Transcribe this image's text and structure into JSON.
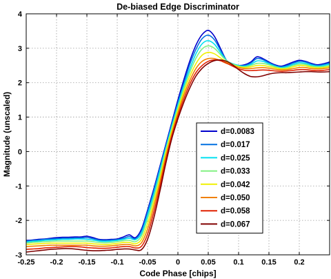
{
  "chart_data": {
    "type": "line",
    "title": "De-biased Edge Discriminator",
    "xlabel": "Code Phase [chips]",
    "ylabel": "Magnitude (unscaled)",
    "xlim": [
      -0.25,
      0.25
    ],
    "ylim": [
      -3,
      4
    ],
    "xticks": [
      -0.25,
      -0.2,
      -0.15,
      -0.1,
      -0.05,
      0,
      0.05,
      0.1,
      0.15,
      0.2
    ],
    "xtick_labels": [
      "-0.25",
      "-0.2",
      "-0.15",
      "-0.1",
      "-0.05",
      "0",
      "0.05",
      "0.1",
      "0.15",
      "0.2"
    ],
    "yticks": [
      -3,
      -2,
      -1,
      0,
      1,
      2,
      3,
      4
    ],
    "ytick_labels": [
      "-3",
      "-2",
      "-1",
      "0",
      "1",
      "2",
      "3",
      "4"
    ],
    "grid": true,
    "legend_position": "center-right",
    "x": [
      -0.25,
      -0.24,
      -0.23,
      -0.22,
      -0.21,
      -0.2,
      -0.19,
      -0.18,
      -0.17,
      -0.16,
      -0.15,
      -0.14,
      -0.13,
      -0.12,
      -0.11,
      -0.1,
      -0.09,
      -0.08,
      -0.07,
      -0.06,
      -0.05,
      -0.04,
      -0.03,
      -0.02,
      -0.01,
      0,
      0.01,
      0.02,
      0.03,
      0.04,
      0.05,
      0.06,
      0.07,
      0.08,
      0.09,
      0.1,
      0.11,
      0.12,
      0.13,
      0.14,
      0.15,
      0.16,
      0.17,
      0.18,
      0.19,
      0.2,
      0.21,
      0.22,
      0.23,
      0.24,
      0.25
    ],
    "series": [
      {
        "name": "d=0.0083",
        "color": "#0000cc",
        "values": [
          -2.58,
          -2.57,
          -2.55,
          -2.54,
          -2.52,
          -2.5,
          -2.49,
          -2.49,
          -2.48,
          -2.48,
          -2.46,
          -2.5,
          -2.55,
          -2.56,
          -2.55,
          -2.54,
          -2.48,
          -2.42,
          -2.5,
          -2.25,
          -1.7,
          -1.1,
          -0.45,
          0.2,
          0.85,
          1.5,
          2.1,
          2.65,
          3.1,
          3.4,
          3.52,
          3.35,
          3.0,
          2.65,
          2.55,
          2.5,
          2.52,
          2.6,
          2.75,
          2.7,
          2.6,
          2.52,
          2.48,
          2.53,
          2.6,
          2.65,
          2.62,
          2.56,
          2.52,
          2.55,
          2.6
        ]
      },
      {
        "name": "d=0.017",
        "color": "#0070e0",
        "values": [
          -2.6,
          -2.58,
          -2.57,
          -2.55,
          -2.54,
          -2.53,
          -2.52,
          -2.52,
          -2.51,
          -2.51,
          -2.5,
          -2.53,
          -2.57,
          -2.58,
          -2.57,
          -2.56,
          -2.52,
          -2.47,
          -2.53,
          -2.3,
          -1.75,
          -1.15,
          -0.5,
          0.15,
          0.8,
          1.42,
          2.0,
          2.55,
          2.98,
          3.28,
          3.38,
          3.25,
          2.95,
          2.65,
          2.55,
          2.5,
          2.5,
          2.57,
          2.7,
          2.67,
          2.58,
          2.5,
          2.46,
          2.5,
          2.57,
          2.62,
          2.6,
          2.54,
          2.5,
          2.53,
          2.57
        ]
      },
      {
        "name": "d=0.025",
        "color": "#00e0f0",
        "values": [
          -2.63,
          -2.61,
          -2.6,
          -2.58,
          -2.57,
          -2.56,
          -2.55,
          -2.55,
          -2.54,
          -2.54,
          -2.55,
          -2.57,
          -2.6,
          -2.61,
          -2.6,
          -2.58,
          -2.55,
          -2.52,
          -2.56,
          -2.38,
          -1.85,
          -1.25,
          -0.58,
          0.1,
          0.74,
          1.35,
          1.92,
          2.42,
          2.85,
          3.13,
          3.22,
          3.12,
          2.88,
          2.65,
          2.55,
          2.5,
          2.48,
          2.53,
          2.63,
          2.62,
          2.55,
          2.48,
          2.44,
          2.47,
          2.53,
          2.58,
          2.56,
          2.51,
          2.48,
          2.5,
          2.54
        ]
      },
      {
        "name": "d=0.033",
        "color": "#80f080",
        "values": [
          -2.66,
          -2.64,
          -2.63,
          -2.62,
          -2.61,
          -2.6,
          -2.6,
          -2.6,
          -2.6,
          -2.6,
          -2.6,
          -2.62,
          -2.64,
          -2.65,
          -2.64,
          -2.62,
          -2.59,
          -2.58,
          -2.62,
          -2.45,
          -1.95,
          -1.35,
          -0.68,
          0.04,
          0.68,
          1.28,
          1.84,
          2.32,
          2.72,
          2.98,
          3.07,
          3.0,
          2.82,
          2.64,
          2.54,
          2.48,
          2.46,
          2.5,
          2.56,
          2.56,
          2.52,
          2.46,
          2.42,
          2.44,
          2.5,
          2.54,
          2.53,
          2.48,
          2.46,
          2.47,
          2.5
        ]
      },
      {
        "name": "d=0.042",
        "color": "#f0f000",
        "values": [
          -2.7,
          -2.69,
          -2.68,
          -2.67,
          -2.66,
          -2.66,
          -2.66,
          -2.66,
          -2.66,
          -2.66,
          -2.66,
          -2.68,
          -2.69,
          -2.7,
          -2.69,
          -2.67,
          -2.64,
          -2.64,
          -2.68,
          -2.55,
          -2.1,
          -1.48,
          -0.8,
          -0.05,
          0.6,
          1.2,
          1.75,
          2.2,
          2.56,
          2.8,
          2.88,
          2.84,
          2.72,
          2.6,
          2.52,
          2.46,
          2.44,
          2.46,
          2.5,
          2.5,
          2.47,
          2.43,
          2.4,
          2.41,
          2.46,
          2.5,
          2.49,
          2.45,
          2.43,
          2.44,
          2.47
        ]
      },
      {
        "name": "d=0.050",
        "color": "#f08000",
        "values": [
          -2.76,
          -2.75,
          -2.74,
          -2.73,
          -2.72,
          -2.72,
          -2.72,
          -2.72,
          -2.72,
          -2.72,
          -2.72,
          -2.74,
          -2.75,
          -2.75,
          -2.74,
          -2.72,
          -2.7,
          -2.7,
          -2.74,
          -2.65,
          -2.25,
          -1.62,
          -0.92,
          -0.15,
          0.52,
          1.12,
          1.65,
          2.08,
          2.42,
          2.62,
          2.7,
          2.7,
          2.64,
          2.56,
          2.5,
          2.44,
          2.41,
          2.41,
          2.43,
          2.44,
          2.42,
          2.39,
          2.37,
          2.38,
          2.41,
          2.44,
          2.44,
          2.41,
          2.4,
          2.41,
          2.43
        ]
      },
      {
        "name": "d=0.058",
        "color": "#e02000",
        "values": [
          -2.84,
          -2.83,
          -2.82,
          -2.8,
          -2.79,
          -2.78,
          -2.77,
          -2.76,
          -2.76,
          -2.77,
          -2.79,
          -2.8,
          -2.81,
          -2.81,
          -2.8,
          -2.78,
          -2.76,
          -2.76,
          -2.8,
          -2.75,
          -2.4,
          -1.78,
          -1.05,
          -0.25,
          0.45,
          1.03,
          1.54,
          1.97,
          2.3,
          2.5,
          2.62,
          2.66,
          2.64,
          2.57,
          2.48,
          2.4,
          2.36,
          2.35,
          2.36,
          2.37,
          2.36,
          2.34,
          2.33,
          2.34,
          2.36,
          2.38,
          2.38,
          2.36,
          2.35,
          2.36,
          2.38
        ]
      },
      {
        "name": "d=0.067",
        "color": "#800000",
        "values": [
          -2.92,
          -2.9,
          -2.88,
          -2.86,
          -2.84,
          -2.83,
          -2.82,
          -2.82,
          -2.83,
          -2.85,
          -2.87,
          -2.88,
          -2.88,
          -2.87,
          -2.86,
          -2.84,
          -2.83,
          -2.83,
          -2.86,
          -2.85,
          -2.55,
          -1.95,
          -1.18,
          -0.35,
          0.38,
          0.95,
          1.44,
          1.86,
          2.2,
          2.42,
          2.56,
          2.64,
          2.66,
          2.62,
          2.52,
          2.38,
          2.26,
          2.18,
          2.17,
          2.2,
          2.25,
          2.28,
          2.29,
          2.29,
          2.3,
          2.31,
          2.32,
          2.32,
          2.31,
          2.31,
          2.32
        ]
      }
    ]
  }
}
